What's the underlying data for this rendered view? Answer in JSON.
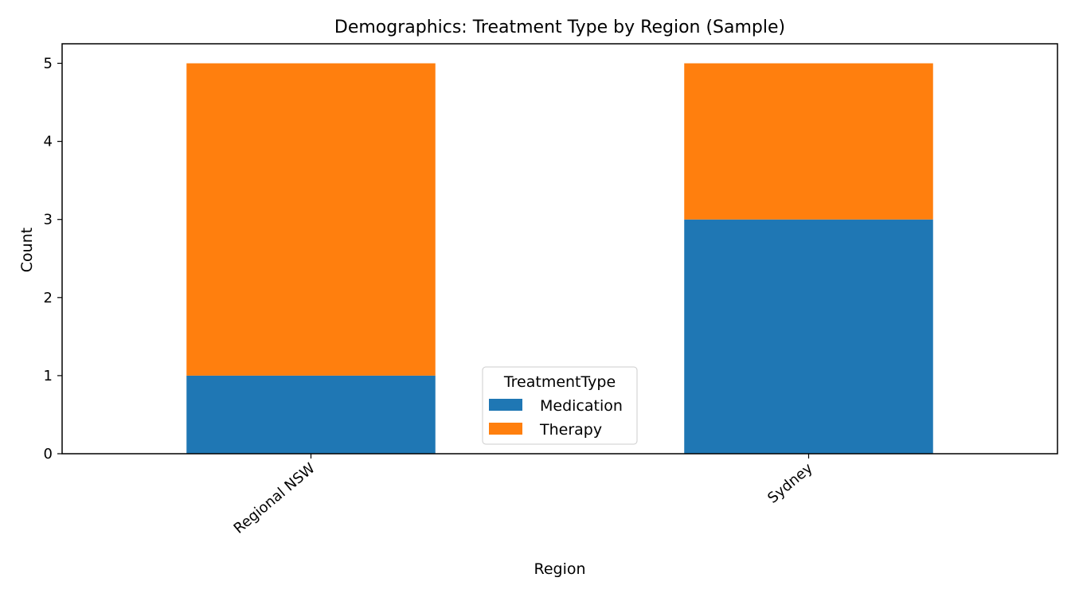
{
  "chart_data": {
    "type": "bar",
    "stacked": true,
    "title": "Demographics: Treatment Type by Region (Sample)",
    "xlabel": "Region",
    "ylabel": "Count",
    "categories": [
      "Regional NSW",
      "Sydney"
    ],
    "series": [
      {
        "name": "Medication",
        "values": [
          1,
          3
        ],
        "color": "#1f77b4"
      },
      {
        "name": "Therapy",
        "values": [
          4,
          2
        ],
        "color": "#ff7f0e"
      }
    ],
    "ylim": [
      0,
      5.25
    ],
    "yticks": [
      0,
      1,
      2,
      3,
      4,
      5
    ],
    "grid": false,
    "legend": {
      "title": "TreatmentType",
      "placement": "bottom-center"
    }
  }
}
